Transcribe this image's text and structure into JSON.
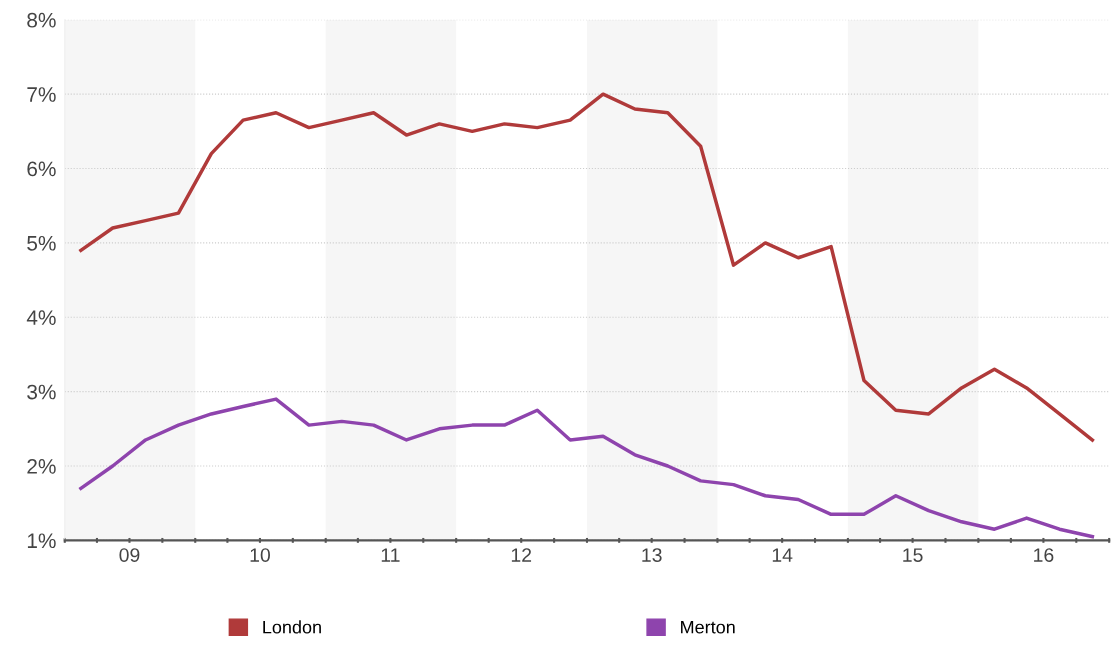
{
  "chart_data": {
    "type": "line",
    "x": [
      "2009-02-15",
      "2009-05-15",
      "2009-08-15",
      "2009-11-15",
      "2010-02-15",
      "2010-05-15",
      "2010-08-15",
      "2010-11-15",
      "2011-02-15",
      "2011-05-15",
      "2011-08-15",
      "2011-11-15",
      "2012-02-15",
      "2012-05-15",
      "2012-08-15",
      "2012-11-15",
      "2013-02-15",
      "2013-05-15",
      "2013-08-15",
      "2013-11-15",
      "2014-02-15",
      "2014-05-15",
      "2014-08-15",
      "2014-11-15",
      "2015-02-15",
      "2015-05-15",
      "2015-08-15",
      "2015-11-15",
      "2016-02-15",
      "2016-05-15",
      "2016-08-15",
      "2016-11-15"
    ],
    "series": [
      {
        "name": "London",
        "color": "#b03a3a",
        "values": [
          4.9,
          5.2,
          5.3,
          5.4,
          6.2,
          6.65,
          6.75,
          6.55,
          6.65,
          6.75,
          6.45,
          6.6,
          6.5,
          6.6,
          6.55,
          6.65,
          7.0,
          6.8,
          6.75,
          6.3,
          4.7,
          5.0,
          4.8,
          4.95,
          3.15,
          2.75,
          2.7,
          3.05,
          3.3,
          3.05,
          2.7,
          2.35
        ]
      },
      {
        "name": "Merton",
        "color": "#8e44ad",
        "values": [
          1.7,
          2.0,
          2.35,
          2.55,
          2.7,
          2.8,
          2.9,
          2.55,
          2.6,
          2.55,
          2.35,
          2.5,
          2.55,
          2.55,
          2.75,
          2.35,
          2.4,
          2.15,
          2.0,
          1.8,
          1.75,
          1.6,
          1.55,
          1.35,
          1.35,
          1.6,
          1.4,
          1.25,
          1.15,
          1.3,
          1.15,
          1.05
        ]
      }
    ],
    "xlim": [
      "2009-01-01",
      "2017-01-01"
    ],
    "xticks": [
      {
        "value": "2009-01-01",
        "label": null
      },
      {
        "value": "2009-04-01",
        "label": null
      },
      {
        "value": "2009-07-01",
        "label": "09"
      },
      {
        "value": "2009-10-01",
        "label": null
      },
      {
        "value": "2010-01-01",
        "label": null
      },
      {
        "value": "2010-04-01",
        "label": null
      },
      {
        "value": "2010-07-01",
        "label": "10"
      },
      {
        "value": "2010-10-01",
        "label": null
      },
      {
        "value": "2011-01-01",
        "label": null
      },
      {
        "value": "2011-04-01",
        "label": null
      },
      {
        "value": "2011-07-01",
        "label": "11"
      },
      {
        "value": "2011-10-01",
        "label": null
      },
      {
        "value": "2012-01-01",
        "label": null
      },
      {
        "value": "2012-04-01",
        "label": null
      },
      {
        "value": "2012-07-01",
        "label": "12"
      },
      {
        "value": "2012-10-01",
        "label": null
      },
      {
        "value": "2013-01-01",
        "label": null
      },
      {
        "value": "2013-04-01",
        "label": null
      },
      {
        "value": "2013-07-01",
        "label": "13"
      },
      {
        "value": "2013-10-01",
        "label": null
      },
      {
        "value": "2014-01-01",
        "label": null
      },
      {
        "value": "2014-04-01",
        "label": null
      },
      {
        "value": "2014-07-01",
        "label": "14"
      },
      {
        "value": "2014-10-01",
        "label": null
      },
      {
        "value": "2015-01-01",
        "label": null
      },
      {
        "value": "2015-04-01",
        "label": null
      },
      {
        "value": "2015-07-01",
        "label": "15"
      },
      {
        "value": "2015-10-01",
        "label": null
      },
      {
        "value": "2016-01-01",
        "label": null
      },
      {
        "value": "2016-04-01",
        "label": null
      },
      {
        "value": "2016-07-01",
        "label": "16"
      },
      {
        "value": "2016-10-01",
        "label": null
      },
      {
        "value": "2017-01-01",
        "label": null
      }
    ],
    "ylim": [
      1,
      8
    ],
    "yticks": [
      {
        "value": 1,
        "label": "1%"
      },
      {
        "value": 2,
        "label": "2%"
      },
      {
        "value": 3,
        "label": "3%"
      },
      {
        "value": 4,
        "label": "4%"
      },
      {
        "value": 5,
        "label": "5%"
      },
      {
        "value": 6,
        "label": "6%"
      },
      {
        "value": 7,
        "label": "7%"
      },
      {
        "value": 8,
        "label": "8%"
      }
    ],
    "bands": [
      {
        "axis": "x",
        "from": "2009-01-01",
        "to": "2010-01-01",
        "color": "#f6f6f6"
      },
      {
        "axis": "x",
        "from": "2011-01-01",
        "to": "2012-01-01",
        "color": "#f6f6f6"
      },
      {
        "axis": "x",
        "from": "2013-01-01",
        "to": "2014-01-01",
        "color": "#f6f6f6"
      },
      {
        "axis": "x",
        "from": "2015-01-01",
        "to": "2016-01-01",
        "color": "#f6f6f6"
      }
    ],
    "grid": "y",
    "legend": "bottom",
    "marker": "none",
    "line_style": "solid"
  }
}
